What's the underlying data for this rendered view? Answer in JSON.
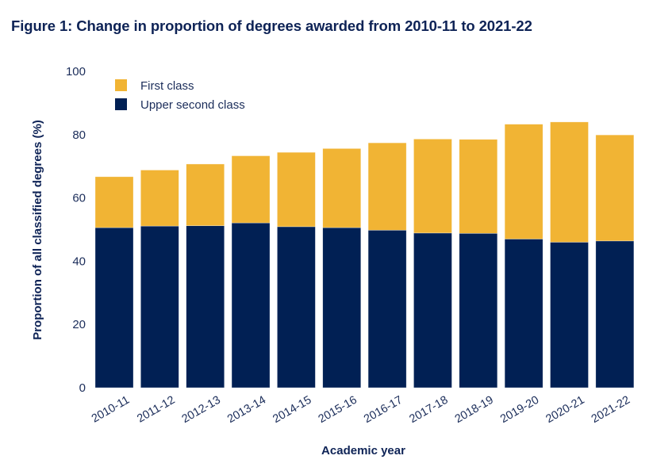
{
  "title": "Figure 1: Change in proportion of degrees awarded from 2010-11 to 2021-22",
  "chart_data": {
    "type": "bar",
    "stacked": true,
    "title": "Figure 1: Change in proportion of degrees awarded from 2010-11 to 2021-22",
    "xlabel": "Academic year",
    "ylabel": "Proportion of all classified degrees (%)",
    "ylim": [
      0,
      100
    ],
    "yticks": [
      0,
      20,
      40,
      60,
      80,
      100
    ],
    "grid": false,
    "legend_position": "top-left",
    "categories": [
      "2010-11",
      "2011-12",
      "2012-13",
      "2013-14",
      "2014-15",
      "2015-16",
      "2016-17",
      "2017-18",
      "2018-19",
      "2019-20",
      "2020-21",
      "2021-22"
    ],
    "series": [
      {
        "name": "Upper second class",
        "color": "#012054",
        "values": [
          50.6,
          51.1,
          51.2,
          52.1,
          50.9,
          50.6,
          49.8,
          48.9,
          48.8,
          47.0,
          46.0,
          46.4
        ]
      },
      {
        "name": "First class",
        "color": "#f1b434",
        "values": [
          16.1,
          17.7,
          19.5,
          21.2,
          23.5,
          25.0,
          27.6,
          29.7,
          29.7,
          36.3,
          38.0,
          33.5
        ]
      }
    ],
    "legend_order": [
      "First class",
      "Upper second class"
    ]
  }
}
